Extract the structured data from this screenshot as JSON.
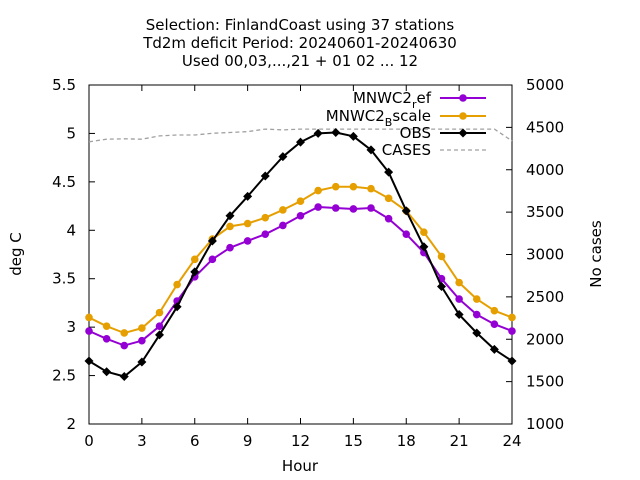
{
  "chart_data": {
    "type": "line",
    "title_lines": [
      "Selection: FinlandCoast using    37 stations",
      "Td2m deficit   Period: 20240601-20240630",
      "Used 00,03,...,21 + 01 02 ... 12"
    ],
    "xlabel": "Hour",
    "ylabel": "deg C",
    "y2label": "No cases",
    "xlim": [
      0,
      24
    ],
    "ylim": [
      2,
      5.5
    ],
    "y2lim": [
      1000,
      5000
    ],
    "x_ticks": [
      "0",
      "3",
      "6",
      "9",
      "12",
      "15",
      "18",
      "21",
      "24"
    ],
    "y_ticks": [
      "2",
      "2.5",
      "3",
      "3.5",
      "4",
      "4.5",
      "5",
      "5.5"
    ],
    "y2_ticks": [
      "1000",
      "1500",
      "2000",
      "2500",
      "3000",
      "3500",
      "4000",
      "4500",
      "5000"
    ],
    "grid": false,
    "legend_position": "top-right",
    "x": [
      0,
      1,
      2,
      3,
      4,
      5,
      6,
      7,
      8,
      9,
      10,
      11,
      12,
      13,
      14,
      15,
      16,
      17,
      18,
      19,
      20,
      21,
      22,
      23,
      24
    ],
    "series": [
      {
        "name": "MNWC2_ref",
        "legend_main": "MNWC2",
        "legend_sub": "r",
        "legend_tail": "ef",
        "color": "#9400d3",
        "axis": "y1",
        "marker": "circle",
        "values": [
          2.96,
          2.88,
          2.81,
          2.86,
          3.01,
          3.27,
          3.52,
          3.7,
          3.82,
          3.89,
          3.96,
          4.05,
          4.15,
          4.24,
          4.23,
          4.22,
          4.23,
          4.12,
          3.96,
          3.77,
          3.5,
          3.29,
          3.13,
          3.03,
          2.96
        ]
      },
      {
        "name": "MNWC2_Bscale",
        "legend_main": "MNWC2",
        "legend_sub": "B",
        "legend_tail": "scale",
        "color": "#e69f00",
        "axis": "y1",
        "marker": "circle",
        "values": [
          3.1,
          3.01,
          2.94,
          2.99,
          3.15,
          3.44,
          3.7,
          3.91,
          4.04,
          4.07,
          4.13,
          4.21,
          4.3,
          4.41,
          4.45,
          4.45,
          4.43,
          4.33,
          4.2,
          3.98,
          3.73,
          3.46,
          3.29,
          3.17,
          3.1
        ]
      },
      {
        "name": "OBS",
        "legend_main": "OBS",
        "legend_sub": "",
        "legend_tail": "",
        "color": "#000000",
        "axis": "y1",
        "marker": "diamond",
        "values": [
          2.65,
          2.54,
          2.49,
          2.64,
          2.92,
          3.21,
          3.57,
          3.89,
          4.15,
          4.35,
          4.56,
          4.76,
          4.91,
          5.0,
          5.01,
          4.97,
          4.83,
          4.6,
          4.2,
          3.83,
          3.42,
          3.13,
          2.94,
          2.77,
          2.65
        ]
      },
      {
        "name": "CASES",
        "legend_main": "CASES",
        "legend_sub": "",
        "legend_tail": "",
        "color": "#a0a0a0",
        "axis": "y2",
        "dashed": true,
        "x": [
          0,
          1,
          2,
          3,
          4,
          5,
          6,
          7,
          8,
          9,
          10,
          11,
          12,
          13,
          14,
          15,
          16,
          17,
          18,
          19,
          20,
          21,
          22,
          23,
          24
        ],
        "values": [
          4330,
          4360,
          4365,
          4360,
          4400,
          4410,
          4410,
          4430,
          4440,
          4450,
          4480,
          4470,
          4480,
          4480,
          4480,
          4480,
          4480,
          4480,
          4480,
          4480,
          4480,
          4480,
          4480,
          4480,
          4340
        ]
      }
    ]
  }
}
